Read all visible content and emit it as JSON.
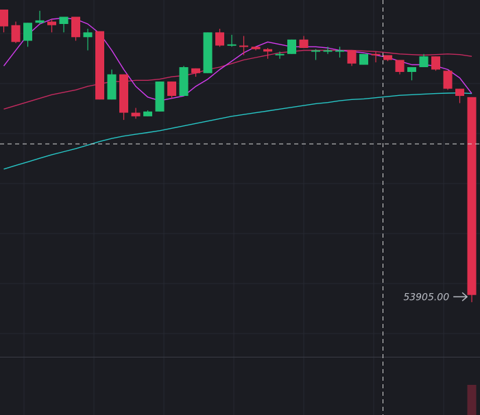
{
  "chart_data": {
    "type": "candlestick",
    "colors": {
      "background": "#1b1c22",
      "grid": "#262831",
      "up": "#20c274",
      "down": "#e0304f",
      "ma_fast": "#d43cf0",
      "ma_mid": "#c52a5f",
      "ma_slow": "#27c6c6",
      "crosshair": "#d8d8d8",
      "separator": "#3a3c45",
      "volume_down": "#5a2230",
      "annotation": "#b9bcc4"
    },
    "y_range": [
      53410,
      56380
    ],
    "candles": [
      {
        "o": 56300,
        "h": 56300,
        "l": 56110,
        "c": 56160
      },
      {
        "o": 56170,
        "h": 56200,
        "l": 56020,
        "c": 56030
      },
      {
        "o": 56040,
        "h": 56190,
        "l": 55990,
        "c": 56190
      },
      {
        "o": 56190,
        "h": 56290,
        "l": 56180,
        "c": 56210
      },
      {
        "o": 56200,
        "h": 56220,
        "l": 56110,
        "c": 56170
      },
      {
        "o": 56180,
        "h": 56240,
        "l": 56110,
        "c": 56240
      },
      {
        "o": 56240,
        "h": 56240,
        "l": 56040,
        "c": 56070
      },
      {
        "o": 56070,
        "h": 56140,
        "l": 55960,
        "c": 56110
      },
      {
        "o": 56120,
        "h": 56120,
        "l": 55550,
        "c": 55550
      },
      {
        "o": 55550,
        "h": 55800,
        "l": 55550,
        "c": 55760
      },
      {
        "o": 55760,
        "h": 55760,
        "l": 55380,
        "c": 55440
      },
      {
        "o": 55440,
        "h": 55480,
        "l": 55390,
        "c": 55410
      },
      {
        "o": 55410,
        "h": 55460,
        "l": 55410,
        "c": 55450
      },
      {
        "o": 55450,
        "h": 55700,
        "l": 55450,
        "c": 55700
      },
      {
        "o": 55700,
        "h": 55700,
        "l": 55560,
        "c": 55580
      },
      {
        "o": 55580,
        "h": 55830,
        "l": 55580,
        "c": 55820
      },
      {
        "o": 55810,
        "h": 55810,
        "l": 55740,
        "c": 55770
      },
      {
        "o": 55770,
        "h": 56110,
        "l": 55770,
        "c": 56110
      },
      {
        "o": 56110,
        "h": 56140,
        "l": 55990,
        "c": 56000
      },
      {
        "o": 56000,
        "h": 56090,
        "l": 55990,
        "c": 56010
      },
      {
        "o": 56000,
        "h": 56080,
        "l": 55920,
        "c": 55990
      },
      {
        "o": 55990,
        "h": 55990,
        "l": 55960,
        "c": 55970
      },
      {
        "o": 55970,
        "h": 55980,
        "l": 55890,
        "c": 55950
      },
      {
        "o": 55930,
        "h": 55950,
        "l": 55890,
        "c": 55930
      },
      {
        "o": 55930,
        "h": 56050,
        "l": 55930,
        "c": 56050
      },
      {
        "o": 56050,
        "h": 56080,
        "l": 55980,
        "c": 55980
      },
      {
        "o": 55960,
        "h": 55970,
        "l": 55880,
        "c": 55960
      },
      {
        "o": 55960,
        "h": 55990,
        "l": 55930,
        "c": 55960
      },
      {
        "o": 55960,
        "h": 55990,
        "l": 55900,
        "c": 55960
      },
      {
        "o": 55960,
        "h": 55960,
        "l": 55830,
        "c": 55850
      },
      {
        "o": 55840,
        "h": 55930,
        "l": 55840,
        "c": 55930
      },
      {
        "o": 55930,
        "h": 55950,
        "l": 55860,
        "c": 55920
      },
      {
        "o": 55920,
        "h": 55920,
        "l": 55870,
        "c": 55880
      },
      {
        "o": 55880,
        "h": 55880,
        "l": 55760,
        "c": 55780
      },
      {
        "o": 55780,
        "h": 55820,
        "l": 55710,
        "c": 55820
      },
      {
        "o": 55820,
        "h": 55930,
        "l": 55820,
        "c": 55910
      },
      {
        "o": 55910,
        "h": 55910,
        "l": 55790,
        "c": 55800
      },
      {
        "o": 55790,
        "h": 55790,
        "l": 55630,
        "c": 55640
      },
      {
        "o": 55640,
        "h": 55640,
        "l": 55520,
        "c": 55580
      },
      {
        "o": 55570,
        "h": 55570,
        "l": 53860,
        "c": 53920
      }
    ],
    "ma_fast_values": [
      55830,
      55960,
      56090,
      56180,
      56220,
      56230,
      56220,
      56180,
      56100,
      55960,
      55800,
      55660,
      55570,
      55540,
      55560,
      55580,
      55660,
      55720,
      55800,
      55870,
      55940,
      55990,
      56030,
      56010,
      55990,
      55990,
      55990,
      55980,
      55960,
      55950,
      55940,
      55920,
      55900,
      55870,
      55840,
      55840,
      55830,
      55800,
      55730,
      55600
    ],
    "ma_mid_values": [
      55470,
      55500,
      55530,
      55560,
      55590,
      55610,
      55630,
      55660,
      55680,
      55700,
      55700,
      55710,
      55710,
      55720,
      55740,
      55750,
      55770,
      55800,
      55820,
      55850,
      55880,
      55900,
      55920,
      55940,
      55950,
      55960,
      55960,
      55960,
      55960,
      55960,
      55955,
      55950,
      55940,
      55930,
      55925,
      55920,
      55925,
      55930,
      55925,
      55910
    ],
    "ma_slow_values": [
      54970,
      55000,
      55030,
      55060,
      55090,
      55115,
      55140,
      55170,
      55200,
      55225,
      55245,
      55260,
      55275,
      55290,
      55310,
      55330,
      55350,
      55370,
      55390,
      55410,
      55425,
      55440,
      55455,
      55470,
      55485,
      55500,
      55515,
      55525,
      55540,
      55550,
      55555,
      55565,
      55575,
      55585,
      55590,
      55595,
      55600,
      55603,
      55605,
      55600
    ],
    "crosshair_price": 55180,
    "crosshair_index": 31.6,
    "min_price_label": "53905.00",
    "min_price_index": 38.95,
    "min_price_value": 53905
  }
}
